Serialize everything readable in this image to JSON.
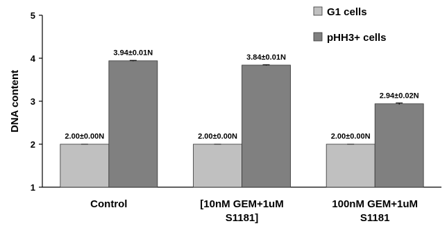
{
  "chart_data": {
    "type": "bar",
    "title": "",
    "ylabel": "DNA content",
    "xlabel": "",
    "ylim": [
      1,
      5
    ],
    "yticks": [
      1,
      2,
      3,
      4,
      5
    ],
    "grid": false,
    "legend_position": "top-right",
    "categories": [
      [
        "Control"
      ],
      [
        "[10nM GEM+1uM",
        "S1181]"
      ],
      [
        "100nM GEM+1uM",
        "S1181"
      ]
    ],
    "series": [
      {
        "name": "G1 cells",
        "color": "#c0c0c0",
        "values": [
          2.0,
          2.0,
          2.0
        ],
        "errors": [
          0.0,
          0.0,
          0.0
        ],
        "labels": [
          "2.00±0.00N",
          "2.00±0.00N",
          "2.00±0.00N"
        ]
      },
      {
        "name": "pHH3+ cells",
        "color": "#808080",
        "values": [
          3.94,
          3.84,
          2.94
        ],
        "errors": [
          0.01,
          0.01,
          0.02
        ],
        "labels": [
          "3.94±0.01N",
          "3.84±0.01N",
          "2.94±0.02N"
        ]
      }
    ]
  }
}
